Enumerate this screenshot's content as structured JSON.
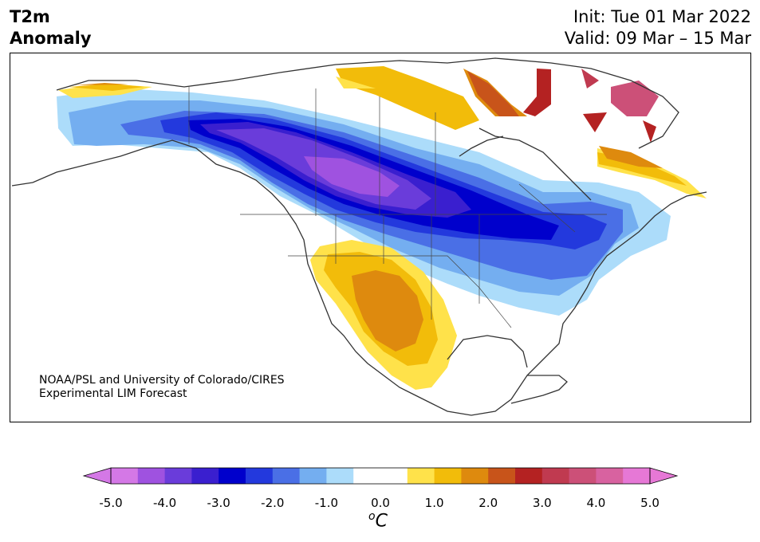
{
  "header": {
    "variable_line1": "T2m",
    "variable_line2": "Anomaly",
    "init": "Init: Tue 01 Mar 2022",
    "valid": "Valid: 09 Mar – 15 Mar"
  },
  "credit": {
    "line1": "NOAA/PSL and University of Colorado/CIRES",
    "line2": "Experimental LIM Forecast"
  },
  "colorbar": {
    "min": -5.0,
    "max": 5.0,
    "step": 0.5,
    "ticks": [
      "-5.0",
      "-4.0",
      "-3.0",
      "-2.0",
      "-1.0",
      "0.0",
      "1.0",
      "2.0",
      "3.0",
      "4.0",
      "5.0"
    ],
    "unit_base": "C",
    "unit_sup": "o",
    "colors": [
      "#d478e6",
      "#9f52e0",
      "#6a3cda",
      "#3a1fcf",
      "#0000cc",
      "#2339dd",
      "#4a6fe6",
      "#74aef0",
      "#acdcfa",
      "#ffffff",
      "#ffffff",
      "#ffe24a",
      "#f2bc0a",
      "#de8a0e",
      "#c8541a",
      "#b42222",
      "#c03a50",
      "#cc5078",
      "#d862a0",
      "#e678d6"
    ],
    "extend_low": "#d478e6",
    "extend_high": "#e678d6"
  },
  "map": {
    "region": "North America",
    "field": "2m temperature anomaly",
    "features": [
      "cold anomaly Canada and northern US",
      "warm anomaly southwestern US and Mexico",
      "warm anomaly Greenland and northeastern Canada"
    ]
  }
}
